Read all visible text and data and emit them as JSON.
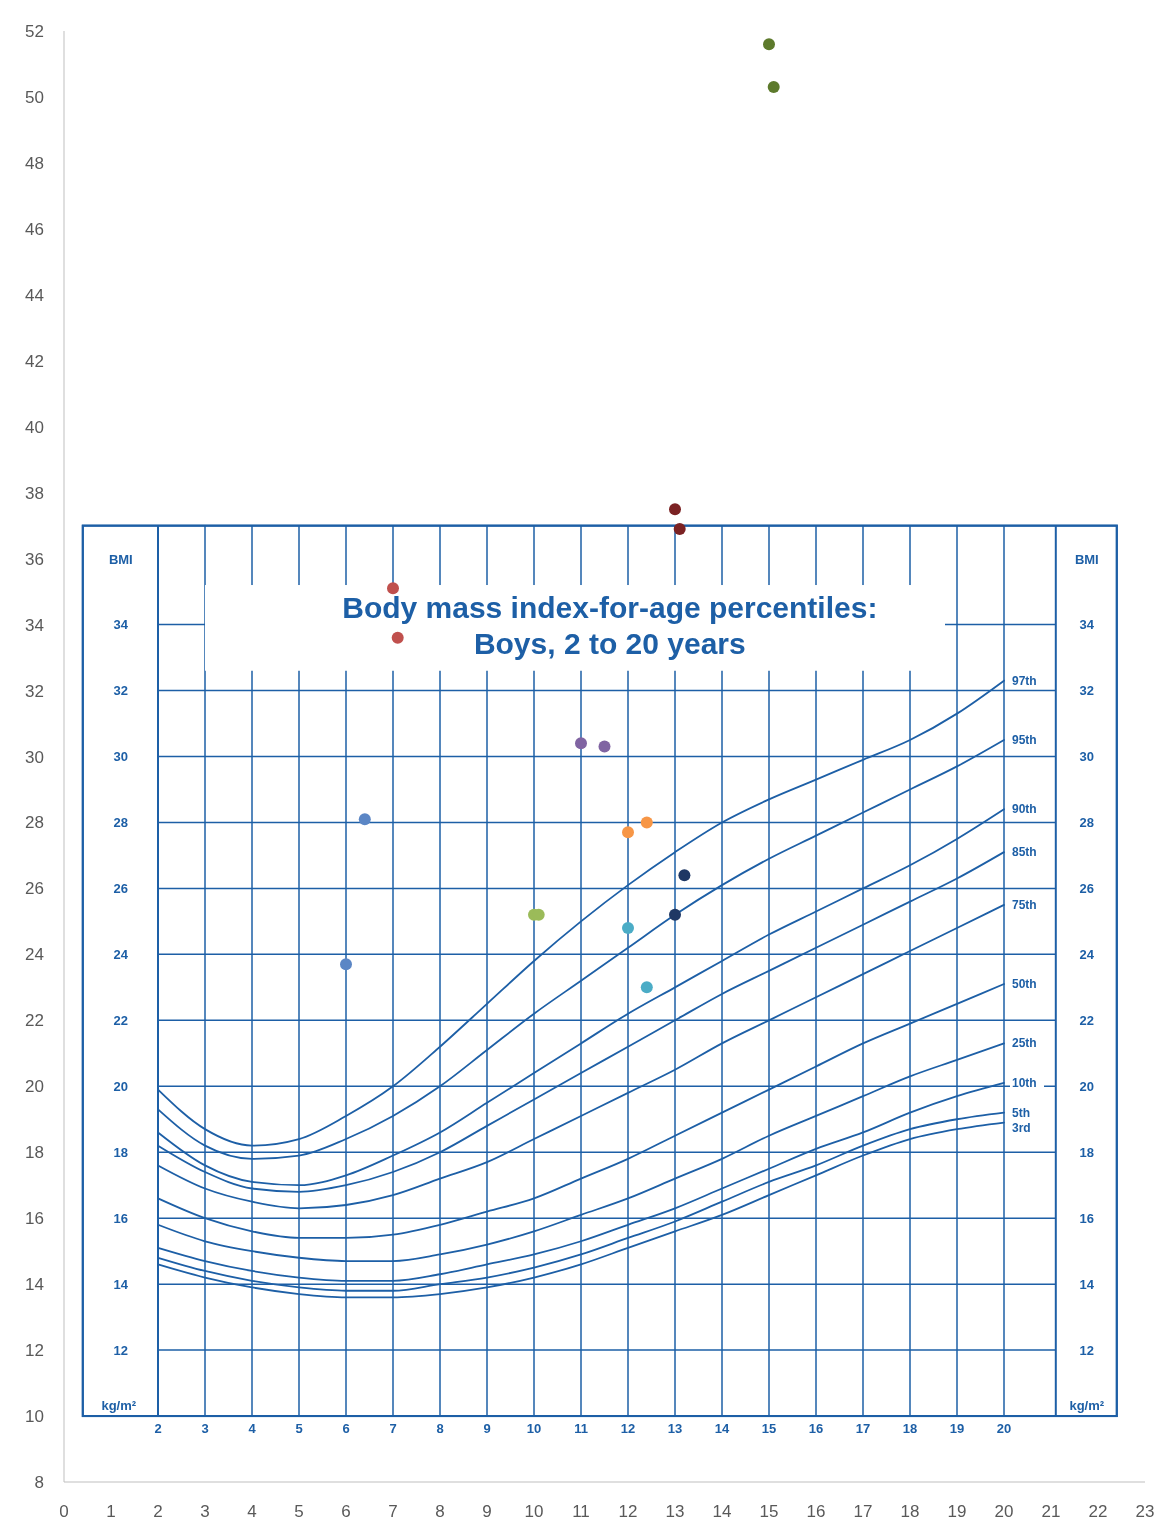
{
  "chart_data": {
    "type": "scatter",
    "title": "Body mass index-for-age percentiles:\nBoys, 2 to 20 years",
    "xlim": [
      0,
      23
    ],
    "xticks": [
      0,
      1,
      2,
      3,
      4,
      5,
      6,
      7,
      8,
      9,
      10,
      11,
      12,
      13,
      14,
      15,
      16,
      17,
      18,
      19,
      20,
      21,
      22,
      23
    ],
    "ylim": [
      8,
      52
    ],
    "yticks": [
      8,
      10,
      12,
      14,
      16,
      18,
      20,
      22,
      24,
      26,
      28,
      30,
      32,
      34,
      36,
      38,
      40,
      42,
      44,
      46,
      48,
      50,
      52
    ],
    "x2lim": [
      0.4,
      22.4
    ],
    "x2ticks": [
      2,
      3,
      4,
      5,
      6,
      7,
      8,
      9,
      10,
      11,
      12,
      13,
      14,
      15,
      16,
      17,
      18,
      19,
      20
    ],
    "y2lim": [
      10,
      37
    ],
    "y2ticks": [
      12,
      14,
      16,
      18,
      20,
      22,
      24,
      26,
      28,
      30,
      32,
      34
    ],
    "y2label": "BMI",
    "y3lim": [
      10,
      37
    ],
    "y3ticks": [
      12,
      14,
      16,
      18,
      20,
      22,
      24,
      26,
      28,
      30,
      32,
      34
    ],
    "y3label": "BMI",
    "annotations": [
      "kg/m²",
      "kg/m²"
    ],
    "grid": "y",
    "ref_lines": [
      {
        "axis": "x",
        "value": 2
      },
      {
        "axis": "x",
        "value": 3
      },
      {
        "axis": "x",
        "value": 4
      },
      {
        "axis": "x",
        "value": 5
      },
      {
        "axis": "x",
        "value": 6
      },
      {
        "axis": "x",
        "value": 7
      },
      {
        "axis": "x",
        "value": 8
      },
      {
        "axis": "x",
        "value": 9
      },
      {
        "axis": "x",
        "value": 10
      },
      {
        "axis": "x",
        "value": 11
      },
      {
        "axis": "x",
        "value": 12
      },
      {
        "axis": "x",
        "value": 13
      },
      {
        "axis": "x",
        "value": 14
      },
      {
        "axis": "x",
        "value": 15
      },
      {
        "axis": "x",
        "value": 16
      },
      {
        "axis": "x",
        "value": 17
      },
      {
        "axis": "x",
        "value": 18
      },
      {
        "axis": "x",
        "value": 19
      },
      {
        "axis": "x",
        "value": 20
      }
    ],
    "marker": "circle",
    "series": [
      {
        "name": "97th",
        "type": "line",
        "marker": "none",
        "color": "#1d5fa6",
        "x": [
          2,
          3,
          4,
          5,
          6,
          7,
          8,
          9,
          10,
          11,
          12,
          13,
          14,
          15,
          16,
          17,
          18,
          19,
          20
        ],
        "values": [
          19.9,
          18.7,
          18.2,
          18.4,
          19.1,
          20.0,
          21.2,
          22.5,
          23.8,
          25.0,
          26.1,
          27.1,
          28.0,
          28.7,
          29.3,
          29.9,
          30.5,
          31.3,
          32.3
        ]
      },
      {
        "name": "95th",
        "type": "line",
        "marker": "none",
        "color": "#1d5fa6",
        "x": [
          2,
          3,
          4,
          5,
          6,
          7,
          8,
          9,
          10,
          11,
          12,
          13,
          14,
          15,
          16,
          17,
          18,
          19,
          20
        ],
        "values": [
          19.3,
          18.2,
          17.8,
          17.9,
          18.4,
          19.1,
          20.0,
          21.1,
          22.2,
          23.2,
          24.2,
          25.2,
          26.1,
          26.9,
          27.6,
          28.3,
          29.0,
          29.7,
          30.5
        ]
      },
      {
        "name": "90th",
        "type": "line",
        "marker": "none",
        "color": "#1d5fa6",
        "x": [
          2,
          3,
          4,
          5,
          6,
          7,
          8,
          9,
          10,
          11,
          12,
          13,
          14,
          15,
          16,
          17,
          18,
          19,
          20
        ],
        "values": [
          18.6,
          17.6,
          17.1,
          17.0,
          17.3,
          17.9,
          18.6,
          19.5,
          20.4,
          21.3,
          22.2,
          23.0,
          23.8,
          24.6,
          25.3,
          26.0,
          26.7,
          27.5,
          28.4
        ]
      },
      {
        "name": "85th",
        "type": "line",
        "marker": "none",
        "color": "#1d5fa6",
        "x": [
          2,
          3,
          4,
          5,
          6,
          7,
          8,
          9,
          10,
          11,
          12,
          13,
          14,
          15,
          16,
          17,
          18,
          19,
          20
        ],
        "values": [
          18.2,
          17.4,
          16.9,
          16.8,
          17.0,
          17.4,
          18.0,
          18.8,
          19.6,
          20.4,
          21.2,
          22.0,
          22.8,
          23.5,
          24.2,
          24.9,
          25.6,
          26.3,
          27.1
        ]
      },
      {
        "name": "75th",
        "type": "line",
        "marker": "none",
        "color": "#1d5fa6",
        "x": [
          2,
          3,
          4,
          5,
          6,
          7,
          8,
          9,
          10,
          11,
          12,
          13,
          14,
          15,
          16,
          17,
          18,
          19,
          20
        ],
        "values": [
          17.6,
          16.9,
          16.5,
          16.3,
          16.4,
          16.7,
          17.2,
          17.7,
          18.4,
          19.1,
          19.8,
          20.5,
          21.3,
          22.0,
          22.7,
          23.4,
          24.1,
          24.8,
          25.5
        ]
      },
      {
        "name": "50th",
        "type": "line",
        "marker": "none",
        "color": "#1d5fa6",
        "x": [
          2,
          3,
          4,
          5,
          6,
          7,
          8,
          9,
          10,
          11,
          12,
          13,
          14,
          15,
          16,
          17,
          18,
          19,
          20
        ],
        "values": [
          16.6,
          16.0,
          15.6,
          15.4,
          15.4,
          15.5,
          15.8,
          16.2,
          16.6,
          17.2,
          17.8,
          18.5,
          19.2,
          19.9,
          20.6,
          21.3,
          21.9,
          22.5,
          23.1
        ]
      },
      {
        "name": "25th",
        "type": "line",
        "marker": "none",
        "color": "#1d5fa6",
        "x": [
          2,
          3,
          4,
          5,
          6,
          7,
          8,
          9,
          10,
          11,
          12,
          13,
          14,
          15,
          16,
          17,
          18,
          19,
          20
        ],
        "values": [
          15.8,
          15.3,
          15.0,
          14.8,
          14.7,
          14.7,
          14.9,
          15.2,
          15.6,
          16.1,
          16.6,
          17.2,
          17.8,
          18.5,
          19.1,
          19.7,
          20.3,
          20.8,
          21.3
        ]
      },
      {
        "name": "10th",
        "type": "line",
        "marker": "none",
        "color": "#1d5fa6",
        "x": [
          2,
          3,
          4,
          5,
          6,
          7,
          8,
          9,
          10,
          11,
          12,
          13,
          14,
          15,
          16,
          17,
          18,
          19,
          20
        ],
        "values": [
          15.1,
          14.7,
          14.4,
          14.2,
          14.1,
          14.1,
          14.3,
          14.6,
          14.9,
          15.3,
          15.8,
          16.3,
          16.9,
          17.5,
          18.1,
          18.6,
          19.2,
          19.7,
          20.1
        ]
      },
      {
        "name": "5th",
        "type": "line",
        "marker": "none",
        "color": "#1d5fa6",
        "x": [
          2,
          3,
          4,
          5,
          6,
          7,
          8,
          9,
          10,
          11,
          12,
          13,
          14,
          15,
          16,
          17,
          18,
          19,
          20
        ],
        "values": [
          14.8,
          14.4,
          14.1,
          13.9,
          13.8,
          13.8,
          14.0,
          14.2,
          14.5,
          14.9,
          15.4,
          15.9,
          16.5,
          17.1,
          17.6,
          18.2,
          18.7,
          19.0,
          19.2
        ]
      },
      {
        "name": "3rd",
        "type": "line",
        "marker": "none",
        "color": "#1d5fa6",
        "x": [
          2,
          3,
          4,
          5,
          6,
          7,
          8,
          9,
          10,
          11,
          12,
          13,
          14,
          15,
          16,
          17,
          18,
          19,
          20
        ],
        "values": [
          14.6,
          14.2,
          13.9,
          13.7,
          13.6,
          13.6,
          13.7,
          13.9,
          14.2,
          14.6,
          15.1,
          15.6,
          16.1,
          16.7,
          17.3,
          17.9,
          18.4,
          18.7,
          18.9
        ]
      },
      {
        "color": "#5b86c5",
        "x": [
          6,
          6.4
        ],
        "values": [
          23.7,
          28.1
        ]
      },
      {
        "color": "#c0504d",
        "x": [
          7,
          7.1
        ],
        "values": [
          35.1,
          33.6
        ]
      },
      {
        "color": "#9bbb59",
        "x": [
          10,
          10.1
        ],
        "values": [
          25.2,
          25.2
        ]
      },
      {
        "color": "#8064a2",
        "x": [
          11,
          11.5
        ],
        "values": [
          30.4,
          30.3
        ]
      },
      {
        "color": "#f79646",
        "x": [
          12,
          12.4
        ],
        "values": [
          27.7,
          28.0
        ]
      },
      {
        "color": "#4bacc6",
        "x": [
          12,
          12.4
        ],
        "values": [
          24.8,
          23.0
        ]
      },
      {
        "color": "#1f3864",
        "x": [
          13,
          13.2
        ],
        "values": [
          25.2,
          26.4
        ]
      },
      {
        "color": "#7b2223",
        "x": [
          13,
          13.1
        ],
        "values": [
          37.5,
          36.9
        ]
      },
      {
        "color": "#5d7a2c",
        "x": [
          15,
          15.1
        ],
        "values": [
          51.6,
          50.3
        ]
      }
    ]
  }
}
